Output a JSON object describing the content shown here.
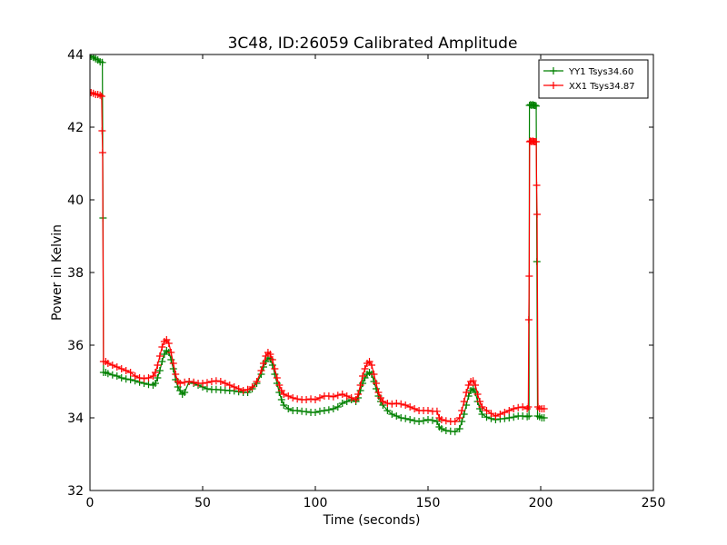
{
  "chart_data": {
    "type": "line",
    "title": "3C48, ID:26059 Calibrated Amplitude",
    "xlabel": "Time (seconds)",
    "ylabel": "Power in Kelvin",
    "xlim": [
      0,
      250
    ],
    "ylim": [
      32,
      44
    ],
    "xticks": [
      0,
      50,
      100,
      150,
      200,
      250
    ],
    "yticks": [
      32,
      34,
      36,
      38,
      40,
      42,
      44
    ],
    "grid": false,
    "legend_position": "upper right",
    "marker": "+",
    "series": [
      {
        "name": "YY1 Tsys34.60",
        "color": "#008000",
        "points": [
          [
            0.5,
            43.95
          ],
          [
            1.5,
            43.92
          ],
          [
            2.5,
            43.88
          ],
          [
            3.5,
            43.85
          ],
          [
            4.5,
            43.8
          ],
          [
            5.5,
            43.78
          ],
          [
            5.8,
            39.5
          ],
          [
            6.0,
            35.25
          ],
          [
            7,
            35.25
          ],
          [
            8,
            35.22
          ],
          [
            10,
            35.18
          ],
          [
            12,
            35.15
          ],
          [
            14,
            35.1
          ],
          [
            16,
            35.07
          ],
          [
            18,
            35.05
          ],
          [
            20,
            35.02
          ],
          [
            22,
            34.98
          ],
          [
            24,
            34.95
          ],
          [
            26,
            34.92
          ],
          [
            28,
            34.9
          ],
          [
            29,
            34.95
          ],
          [
            30,
            35.1
          ],
          [
            31,
            35.3
          ],
          [
            32,
            35.55
          ],
          [
            33,
            35.75
          ],
          [
            34,
            35.85
          ],
          [
            35,
            35.8
          ],
          [
            36,
            35.6
          ],
          [
            37,
            35.35
          ],
          [
            38,
            35.05
          ],
          [
            39,
            34.85
          ],
          [
            40,
            34.75
          ],
          [
            41,
            34.65
          ],
          [
            42,
            34.7
          ],
          [
            44,
            35.0
          ],
          [
            46,
            34.95
          ],
          [
            48,
            34.9
          ],
          [
            50,
            34.85
          ],
          [
            52,
            34.8
          ],
          [
            54,
            34.78
          ],
          [
            56,
            34.78
          ],
          [
            58,
            34.77
          ],
          [
            60,
            34.76
          ],
          [
            62,
            34.75
          ],
          [
            64,
            34.74
          ],
          [
            66,
            34.72
          ],
          [
            68,
            34.7
          ],
          [
            70,
            34.7
          ],
          [
            72,
            34.8
          ],
          [
            74,
            34.95
          ],
          [
            76,
            35.2
          ],
          [
            77,
            35.4
          ],
          [
            78,
            35.55
          ],
          [
            79,
            35.65
          ],
          [
            80,
            35.62
          ],
          [
            81,
            35.45
          ],
          [
            82,
            35.2
          ],
          [
            83,
            34.95
          ],
          [
            84,
            34.7
          ],
          [
            85,
            34.5
          ],
          [
            86,
            34.35
          ],
          [
            88,
            34.25
          ],
          [
            90,
            34.2
          ],
          [
            92,
            34.2
          ],
          [
            94,
            34.18
          ],
          [
            96,
            34.17
          ],
          [
            98,
            34.15
          ],
          [
            100,
            34.15
          ],
          [
            102,
            34.18
          ],
          [
            104,
            34.2
          ],
          [
            106,
            34.22
          ],
          [
            108,
            34.25
          ],
          [
            110,
            34.3
          ],
          [
            112,
            34.4
          ],
          [
            114,
            34.45
          ],
          [
            116,
            34.5
          ],
          [
            118,
            34.45
          ],
          [
            119,
            34.55
          ],
          [
            120,
            34.75
          ],
          [
            121,
            34.95
          ],
          [
            122,
            35.1
          ],
          [
            123,
            35.2
          ],
          [
            124,
            35.25
          ],
          [
            125,
            35.2
          ],
          [
            126,
            35.0
          ],
          [
            127,
            34.8
          ],
          [
            128,
            34.6
          ],
          [
            129,
            34.45
          ],
          [
            130,
            34.35
          ],
          [
            132,
            34.2
          ],
          [
            134,
            34.1
          ],
          [
            136,
            34.05
          ],
          [
            138,
            34.0
          ],
          [
            140,
            33.98
          ],
          [
            142,
            33.95
          ],
          [
            144,
            33.92
          ],
          [
            146,
            33.9
          ],
          [
            148,
            33.92
          ],
          [
            150,
            33.95
          ],
          [
            152,
            33.93
          ],
          [
            154,
            33.9
          ],
          [
            155,
            33.75
          ],
          [
            156,
            33.7
          ],
          [
            158,
            33.65
          ],
          [
            160,
            33.63
          ],
          [
            162,
            33.62
          ],
          [
            164,
            33.7
          ],
          [
            165,
            33.9
          ],
          [
            166,
            34.1
          ],
          [
            167,
            34.35
          ],
          [
            168,
            34.6
          ],
          [
            169,
            34.75
          ],
          [
            170,
            34.8
          ],
          [
            171,
            34.7
          ],
          [
            172,
            34.45
          ],
          [
            173,
            34.25
          ],
          [
            174,
            34.1
          ],
          [
            176,
            34.02
          ],
          [
            178,
            33.98
          ],
          [
            180,
            33.95
          ],
          [
            182,
            33.97
          ],
          [
            184,
            33.98
          ],
          [
            186,
            34.0
          ],
          [
            188,
            34.02
          ],
          [
            190,
            34.05
          ],
          [
            192,
            34.05
          ],
          [
            194,
            34.03
          ],
          [
            194.8,
            34.05
          ],
          [
            195.0,
            42.6
          ],
          [
            195.5,
            42.62
          ],
          [
            196,
            42.6
          ],
          [
            196.5,
            42.62
          ],
          [
            197,
            42.6
          ],
          [
            197.5,
            42.6
          ],
          [
            198,
            42.58
          ],
          [
            198.3,
            38.3
          ],
          [
            198.6,
            34.05
          ],
          [
            199.5,
            34.03
          ],
          [
            200.5,
            34.0
          ],
          [
            201.5,
            34.0
          ]
        ]
      },
      {
        "name": "XX1 Tsys34.87",
        "color": "#ff0000",
        "points": [
          [
            0.5,
            42.95
          ],
          [
            1.5,
            42.93
          ],
          [
            2.5,
            42.9
          ],
          [
            3.5,
            42.9
          ],
          [
            4.5,
            42.88
          ],
          [
            5.2,
            42.85
          ],
          [
            5.4,
            41.9
          ],
          [
            5.6,
            41.3
          ],
          [
            6.0,
            35.55
          ],
          [
            7,
            35.55
          ],
          [
            8,
            35.5
          ],
          [
            10,
            35.45
          ],
          [
            12,
            35.4
          ],
          [
            14,
            35.35
          ],
          [
            16,
            35.3
          ],
          [
            18,
            35.25
          ],
          [
            20,
            35.15
          ],
          [
            22,
            35.1
          ],
          [
            24,
            35.08
          ],
          [
            26,
            35.1
          ],
          [
            28,
            35.15
          ],
          [
            29,
            35.25
          ],
          [
            30,
            35.45
          ],
          [
            31,
            35.7
          ],
          [
            32,
            35.95
          ],
          [
            33,
            36.1
          ],
          [
            34,
            36.15
          ],
          [
            35,
            36.05
          ],
          [
            36,
            35.8
          ],
          [
            37,
            35.5
          ],
          [
            38,
            35.2
          ],
          [
            39,
            35.0
          ],
          [
            40,
            34.95
          ],
          [
            42,
            34.98
          ],
          [
            44,
            35.0
          ],
          [
            46,
            34.98
          ],
          [
            48,
            34.95
          ],
          [
            50,
            34.95
          ],
          [
            52,
            34.97
          ],
          [
            54,
            35.0
          ],
          [
            56,
            35.02
          ],
          [
            58,
            35.0
          ],
          [
            60,
            34.95
          ],
          [
            62,
            34.9
          ],
          [
            64,
            34.85
          ],
          [
            66,
            34.8
          ],
          [
            68,
            34.75
          ],
          [
            70,
            34.78
          ],
          [
            72,
            34.85
          ],
          [
            74,
            35.0
          ],
          [
            76,
            35.3
          ],
          [
            77,
            35.5
          ],
          [
            78,
            35.7
          ],
          [
            79,
            35.8
          ],
          [
            80,
            35.75
          ],
          [
            81,
            35.6
          ],
          [
            82,
            35.35
          ],
          [
            83,
            35.1
          ],
          [
            84,
            34.9
          ],
          [
            85,
            34.75
          ],
          [
            86,
            34.65
          ],
          [
            88,
            34.6
          ],
          [
            90,
            34.55
          ],
          [
            92,
            34.52
          ],
          [
            94,
            34.5
          ],
          [
            96,
            34.5
          ],
          [
            98,
            34.52
          ],
          [
            100,
            34.5
          ],
          [
            102,
            34.55
          ],
          [
            104,
            34.6
          ],
          [
            106,
            34.6
          ],
          [
            108,
            34.58
          ],
          [
            110,
            34.62
          ],
          [
            112,
            34.65
          ],
          [
            114,
            34.6
          ],
          [
            116,
            34.55
          ],
          [
            118,
            34.5
          ],
          [
            119,
            34.65
          ],
          [
            120,
            34.9
          ],
          [
            121,
            35.15
          ],
          [
            122,
            35.35
          ],
          [
            123,
            35.5
          ],
          [
            124,
            35.55
          ],
          [
            125,
            35.45
          ],
          [
            126,
            35.2
          ],
          [
            127,
            34.95
          ],
          [
            128,
            34.7
          ],
          [
            129,
            34.55
          ],
          [
            130,
            34.45
          ],
          [
            132,
            34.4
          ],
          [
            134,
            34.38
          ],
          [
            136,
            34.4
          ],
          [
            138,
            34.38
          ],
          [
            140,
            34.35
          ],
          [
            142,
            34.3
          ],
          [
            144,
            34.25
          ],
          [
            146,
            34.2
          ],
          [
            148,
            34.2
          ],
          [
            150,
            34.2
          ],
          [
            152,
            34.18
          ],
          [
            154,
            34.18
          ],
          [
            155,
            34.0
          ],
          [
            156,
            33.95
          ],
          [
            158,
            33.92
          ],
          [
            160,
            33.9
          ],
          [
            162,
            33.9
          ],
          [
            164,
            34.0
          ],
          [
            165,
            34.2
          ],
          [
            166,
            34.45
          ],
          [
            167,
            34.7
          ],
          [
            168,
            34.9
          ],
          [
            169,
            35.0
          ],
          [
            170,
            35.02
          ],
          [
            171,
            34.9
          ],
          [
            172,
            34.65
          ],
          [
            173,
            34.45
          ],
          [
            174,
            34.3
          ],
          [
            176,
            34.2
          ],
          [
            178,
            34.12
          ],
          [
            180,
            34.05
          ],
          [
            182,
            34.1
          ],
          [
            184,
            34.15
          ],
          [
            186,
            34.2
          ],
          [
            188,
            34.25
          ],
          [
            190,
            34.28
          ],
          [
            192,
            34.3
          ],
          [
            194,
            34.25
          ],
          [
            194.5,
            34.3
          ],
          [
            194.7,
            36.7
          ],
          [
            194.9,
            37.9
          ],
          [
            195.1,
            41.6
          ],
          [
            195.5,
            41.62
          ],
          [
            196,
            41.6
          ],
          [
            196.5,
            41.62
          ],
          [
            197,
            41.6
          ],
          [
            197.5,
            41.6
          ],
          [
            198,
            41.6
          ],
          [
            198.2,
            40.4
          ],
          [
            198.4,
            39.6
          ],
          [
            198.8,
            34.3
          ],
          [
            199.5,
            34.25
          ],
          [
            200.5,
            34.25
          ],
          [
            201.5,
            34.25
          ]
        ]
      }
    ]
  }
}
